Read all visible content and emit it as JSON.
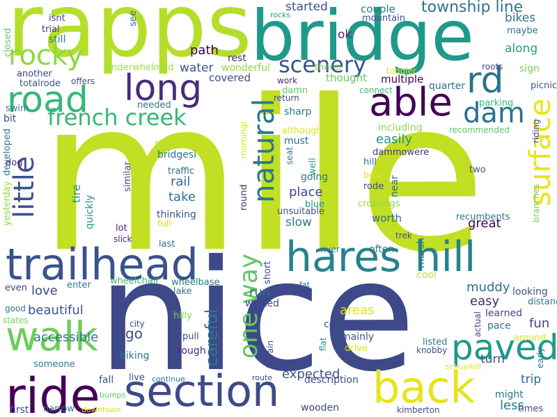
{
  "words": [
    {
      "text": "mile",
      "color": "#c2df23",
      "vertical": false
    },
    {
      "text": "nice",
      "color": "#3e4989",
      "vertical": false
    },
    {
      "text": "rapps",
      "color": "#b5de2b",
      "vertical": false
    },
    {
      "text": "bridge",
      "color": "#1f9a8a",
      "vertical": false
    },
    {
      "text": "trailhead",
      "color": "#3b528b",
      "vertical": false
    },
    {
      "text": "hares hill",
      "color": "#26828e",
      "vertical": false
    },
    {
      "text": "section",
      "color": "#3e4989",
      "vertical": false
    },
    {
      "text": "ride",
      "color": "#440154",
      "vertical": false
    },
    {
      "text": "back",
      "color": "#e7e419",
      "vertical": false
    },
    {
      "text": "walk",
      "color": "#6ece58",
      "vertical": false
    },
    {
      "text": "road",
      "color": "#35b779",
      "vertical": false
    },
    {
      "text": "able",
      "color": "#440154",
      "vertical": false
    },
    {
      "text": "long",
      "color": "#472d7b",
      "vertical": false
    },
    {
      "text": "paved",
      "color": "#1f9a8a",
      "vertical": false
    },
    {
      "text": "rocky",
      "color": "#90d743",
      "vertical": false
    },
    {
      "text": "natural",
      "color": "#2a788e",
      "vertical": true
    },
    {
      "text": "little",
      "color": "#3b528b",
      "vertical": true
    },
    {
      "text": "surface",
      "color": "#e7e419",
      "vertical": true
    },
    {
      "text": "french creek",
      "color": "#35b779",
      "vertical": false
    },
    {
      "text": "rd",
      "color": "#2c728e",
      "vertical": false
    },
    {
      "text": "dam",
      "color": "#2c728e",
      "vertical": false
    },
    {
      "text": "scenery",
      "color": "#3b528b",
      "vertical": false
    },
    {
      "text": "one way",
      "color": "#5ec962",
      "vertical": true
    },
    {
      "text": "township line",
      "color": "#2c728e",
      "vertical": false
    },
    {
      "text": "path",
      "color": "#440154",
      "vertical": false
    },
    {
      "text": "water",
      "color": "#3b528b",
      "vertical": false
    },
    {
      "text": "started",
      "color": "#3b528b",
      "vertical": false
    },
    {
      "text": "ok",
      "color": "#482878",
      "vertical": false
    },
    {
      "text": "bikes",
      "color": "#2c728e",
      "vertical": false
    },
    {
      "text": "along",
      "color": "#1f9e89",
      "vertical": false
    },
    {
      "text": "great",
      "color": "#440154",
      "vertical": false
    },
    {
      "text": "slow",
      "color": "#2a788e",
      "vertical": false
    },
    {
      "text": "place",
      "color": "#3e4989",
      "vertical": false
    },
    {
      "text": "take",
      "color": "#2c728e",
      "vertical": false
    },
    {
      "text": "rail",
      "color": "#31688e",
      "vertical": false
    },
    {
      "text": "easily",
      "color": "#21918c",
      "vertical": false
    },
    {
      "text": "love",
      "color": "#3e4989",
      "vertical": false
    },
    {
      "text": "beautiful",
      "color": "#3b528b",
      "vertical": false
    },
    {
      "text": "accessible",
      "color": "#2a788e",
      "vertical": false
    },
    {
      "text": "careful",
      "color": "#2a788e",
      "vertical": true
    },
    {
      "text": "muddy",
      "color": "#2c728e",
      "vertical": false
    },
    {
      "text": "easy",
      "color": "#482878",
      "vertical": false
    },
    {
      "text": "fun",
      "color": "#414487",
      "vertical": false
    },
    {
      "text": "expected",
      "color": "#3b528b",
      "vertical": false
    },
    {
      "text": "areas",
      "color": "#dde318",
      "vertical": false
    },
    {
      "text": "run",
      "color": "#2c728e",
      "vertical": false
    },
    {
      "text": "turn",
      "color": "#3b528b",
      "vertical": false
    },
    {
      "text": "trip",
      "color": "#31688e",
      "vertical": false
    },
    {
      "text": "less",
      "color": "#2a788e",
      "vertical": false
    },
    {
      "text": "go",
      "color": "#3e4989",
      "vertical": false
    },
    {
      "text": "multiple",
      "color": "#440154",
      "vertical": false
    },
    {
      "text": "thought",
      "color": "#5ec962",
      "vertical": false
    },
    {
      "text": "covered",
      "color": "#3e4989",
      "vertical": false
    },
    {
      "text": "wonderful",
      "color": "#90d743",
      "vertical": false
    },
    {
      "text": "rest",
      "color": "#482878",
      "vertical": false
    },
    {
      "text": "underwhelmed",
      "color": "#a0da39",
      "vertical": false
    },
    {
      "text": "quarter",
      "color": "#2c728e",
      "vertical": false
    },
    {
      "text": "picnic",
      "color": "#3b528b",
      "vertical": false
    },
    {
      "text": "parking",
      "color": "#35b779",
      "vertical": false
    },
    {
      "text": "sign",
      "color": "#7ad151",
      "vertical": false
    },
    {
      "text": "roots",
      "color": "#3e4989",
      "vertical": false
    },
    {
      "text": "toddler",
      "color": "#e7e419",
      "vertical": false
    },
    {
      "text": "couple",
      "color": "#2a788e",
      "vertical": false
    },
    {
      "text": "mountain",
      "color": "#3b528b",
      "vertical": false
    },
    {
      "text": "maybe",
      "color": "#2c728e",
      "vertical": false
    },
    {
      "text": "rocks",
      "color": "#1f9e89",
      "vertical": false
    },
    {
      "text": "therei",
      "color": "#7ad151",
      "vertical": false
    },
    {
      "text": "isnt",
      "color": "#414487",
      "vertical": false
    },
    {
      "text": "trial",
      "color": "#46337e",
      "vertical": false
    },
    {
      "text": "still",
      "color": "#2a788e",
      "vertical": false
    },
    {
      "text": "closed",
      "color": "#5ec962",
      "vertical": true
    },
    {
      "text": "see",
      "color": "#31688e",
      "vertical": true
    },
    {
      "text": "another",
      "color": "#414487",
      "vertical": false
    },
    {
      "text": "totalrode",
      "color": "#3b528b",
      "vertical": false
    },
    {
      "text": "offers",
      "color": "#3e4989",
      "vertical": false
    },
    {
      "text": "needed",
      "color": "#2a788e",
      "vertical": false
    },
    {
      "text": "swim",
      "color": "#2a788e",
      "vertical": false
    },
    {
      "text": "bit",
      "color": "#3e4989",
      "vertical": false
    },
    {
      "text": "developed",
      "color": "#2a788e",
      "vertical": true
    },
    {
      "text": "dog",
      "color": "#482878",
      "vertical": false
    },
    {
      "text": "yesterday",
      "color": "#90d743",
      "vertical": true
    },
    {
      "text": "spring",
      "color": "#b5de2b",
      "vertical": false
    },
    {
      "text": "bridgesi",
      "color": "#2a788e",
      "vertical": false
    },
    {
      "text": "traffic",
      "color": "#31688e",
      "vertical": false
    },
    {
      "text": "tire",
      "color": "#21918c",
      "vertical": true
    },
    {
      "text": "quickly",
      "color": "#21918c",
      "vertical": true
    },
    {
      "text": "similar",
      "color": "#3b528b",
      "vertical": true
    },
    {
      "text": "thinking",
      "color": "#3b528b",
      "vertical": false
    },
    {
      "text": "full",
      "color": "#dde318",
      "vertical": false
    },
    {
      "text": "lot",
      "color": "#482878",
      "vertical": false
    },
    {
      "text": "slick",
      "color": "#482878",
      "vertical": false
    },
    {
      "text": "last",
      "color": "#2a788e",
      "vertical": false
    },
    {
      "text": "work",
      "color": "#482878",
      "vertical": false
    },
    {
      "text": "damn",
      "color": "#5ec962",
      "vertical": false
    },
    {
      "text": "return",
      "color": "#3e4989",
      "vertical": false
    },
    {
      "text": "connect",
      "color": "#35b779",
      "vertical": false
    },
    {
      "text": "sharp",
      "color": "#2a788e",
      "vertical": false
    },
    {
      "text": "although",
      "color": "#dde318",
      "vertical": false
    },
    {
      "text": "must",
      "color": "#2c728e",
      "vertical": false
    },
    {
      "text": "including",
      "color": "#90d743",
      "vertical": false
    },
    {
      "text": "recommended",
      "color": "#5ec962",
      "vertical": false
    },
    {
      "text": "riding",
      "color": "#3e4989",
      "vertical": true
    },
    {
      "text": "morningi",
      "color": "#dde318",
      "vertical": true
    },
    {
      "text": "seat",
      "color": "#2a788e",
      "vertical": true
    },
    {
      "text": "well",
      "color": "#1f9e89",
      "vertical": true
    },
    {
      "text": "going",
      "color": "#2c728e",
      "vertical": false
    },
    {
      "text": "dammowere",
      "color": "#46337e",
      "vertical": false
    },
    {
      "text": "hill",
      "color": "#2c728e",
      "vertical": false
    },
    {
      "text": "best",
      "color": "#dde318",
      "vertical": false
    },
    {
      "text": "rode",
      "color": "#3e4989",
      "vertical": false
    },
    {
      "text": "near",
      "color": "#2c728e",
      "vertical": true
    },
    {
      "text": "two",
      "color": "#3b528b",
      "vertical": false
    },
    {
      "text": "round",
      "color": "#46337e",
      "vertical": true
    },
    {
      "text": "blue",
      "color": "#21918c",
      "vertical": false
    },
    {
      "text": "unsuitable",
      "color": "#3b528b",
      "vertical": false
    },
    {
      "text": "crossings",
      "color": "#90d743",
      "vertical": false
    },
    {
      "text": "worth",
      "color": "#31688e",
      "vertical": false
    },
    {
      "text": "recumbents",
      "color": "#2a788e",
      "vertical": false
    },
    {
      "text": "branches",
      "color": "#7ad151",
      "vertical": true
    },
    {
      "text": "trek",
      "color": "#3b528b",
      "vertical": false
    },
    {
      "text": "river",
      "color": "#2a788e",
      "vertical": false
    },
    {
      "text": "often",
      "color": "#2a788e",
      "vertical": false
    },
    {
      "text": "marsh",
      "color": "#2a788e",
      "vertical": true
    },
    {
      "text": "cool",
      "color": "#c2df23",
      "vertical": false
    },
    {
      "text": "short",
      "color": "#3e4989",
      "vertical": true
    },
    {
      "text": "walked",
      "color": "#3e4989",
      "vertical": false
    },
    {
      "text": "lake",
      "color": "#2c728e",
      "vertical": false
    },
    {
      "text": "wheelbase",
      "color": "#2a788e",
      "vertical": false
    },
    {
      "text": "wheelchair",
      "color": "#35b779",
      "vertical": false
    },
    {
      "text": "enter",
      "color": "#2a788e",
      "vertical": false
    },
    {
      "text": "even",
      "color": "#3e4989",
      "vertical": false
    },
    {
      "text": "good",
      "color": "#2a788e",
      "vertical": false
    },
    {
      "text": "states",
      "color": "#7ad151",
      "vertical": false
    },
    {
      "text": "fat",
      "color": "#31688e",
      "vertical": false
    },
    {
      "text": "gets",
      "color": "#3b528b",
      "vertical": false
    },
    {
      "text": "looking",
      "color": "#3b528b",
      "vertical": false
    },
    {
      "text": "distance",
      "color": "#2a788e",
      "vertical": false
    },
    {
      "text": "learned",
      "color": "#3e4989",
      "vertical": false
    },
    {
      "text": "pace",
      "color": "#2a788e",
      "vertical": false
    },
    {
      "text": "around",
      "color": "#dde318",
      "vertical": false
    },
    {
      "text": "early",
      "color": "#2a788e",
      "vertical": true
    },
    {
      "text": "actual",
      "color": "#3e4989",
      "vertical": true
    },
    {
      "text": "hilly",
      "color": "#7ad151",
      "vertical": false
    },
    {
      "text": "city",
      "color": "#3e4989",
      "vertical": false
    },
    {
      "text": "pull",
      "color": "#3e4989",
      "vertical": false
    },
    {
      "text": "tough",
      "color": "#482878",
      "vertical": false
    },
    {
      "text": "course",
      "color": "#3e4989",
      "vertical": false
    },
    {
      "text": "mainly",
      "color": "#3b528b",
      "vertical": false
    },
    {
      "text": "drive",
      "color": "#dde318",
      "vertical": false
    },
    {
      "text": "listed",
      "color": "#2a788e",
      "vertical": false
    },
    {
      "text": "knobby",
      "color": "#3b528b",
      "vertical": false
    },
    {
      "text": "flat",
      "color": "#21918c",
      "vertical": true
    },
    {
      "text": "terrain",
      "color": "#3e4989",
      "vertical": true
    },
    {
      "text": "schuylkill",
      "color": "#dde318",
      "vertical": false
    },
    {
      "text": "might",
      "color": "#2a788e",
      "vertical": false
    },
    {
      "text": "times",
      "color": "#3e4989",
      "vertical": false
    },
    {
      "text": "biking",
      "color": "#2a788e",
      "vertical": false
    },
    {
      "text": "someone",
      "color": "#2a788e",
      "vertical": false
    },
    {
      "text": "live",
      "color": "#3e4989",
      "vertical": false
    },
    {
      "text": "continue",
      "color": "#2a788e",
      "vertical": false
    },
    {
      "text": "route",
      "color": "#3e4989",
      "vertical": false
    },
    {
      "text": "description",
      "color": "#3e4989",
      "vertical": false
    },
    {
      "text": "fall",
      "color": "#3b528b",
      "vertical": false
    },
    {
      "text": "bumps",
      "color": "#5ec962",
      "vertical": false
    },
    {
      "text": "narrow",
      "color": "#2a788e",
      "vertical": false
    },
    {
      "text": "first",
      "color": "#3e4989",
      "vertical": false
    },
    {
      "text": "downtown",
      "color": "#dde318",
      "vertical": false
    },
    {
      "text": "wooden",
      "color": "#3e4989",
      "vertical": false
    },
    {
      "text": "kimberton",
      "color": "#3e4989",
      "vertical": false
    }
  ]
}
